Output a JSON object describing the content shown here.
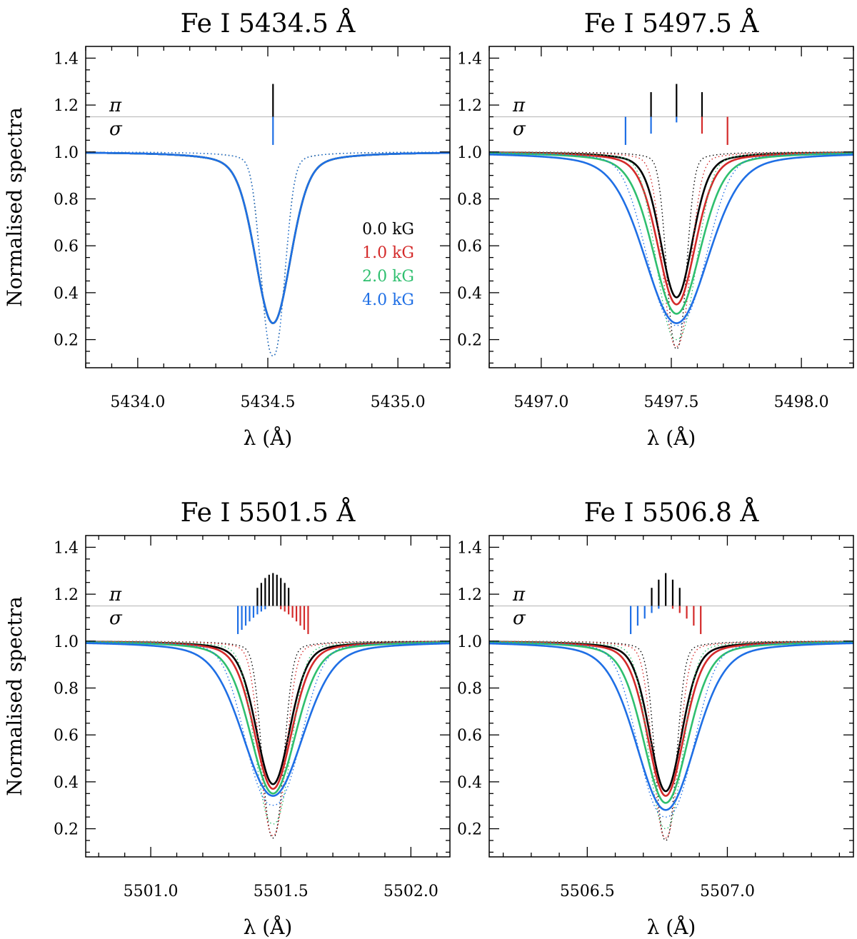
{
  "chart_data": [
    {
      "type": "line",
      "title": "Fe I  5434.5 Å",
      "xlabel": "λ (Å)",
      "ylabel": "Normalised spectra",
      "xlim": [
        5433.8,
        5435.2
      ],
      "ylim": [
        0.08,
        1.45
      ],
      "xticks": [
        5434.0,
        5434.5,
        5435.0
      ],
      "xtick_labels": [
        "5434.0",
        "5434.5",
        "5435.0"
      ],
      "yticks": [
        0.2,
        0.4,
        0.6,
        0.8,
        1.0,
        1.2,
        1.4
      ],
      "ytick_labels": [
        "0.2",
        "0.4",
        "0.6",
        "0.8",
        "1.0",
        "1.2",
        "1.4"
      ],
      "line_center": 5434.52,
      "pi_label": "π",
      "sigma_label": "σ",
      "legend": [
        "0.0 kG",
        "1.0 kG",
        "2.0 kG",
        "4.0 kG"
      ],
      "series": [
        {
          "name": "0.0 kG",
          "color": "#000000",
          "depth": 0.73,
          "width": 0.095,
          "dotted_depth": 0.87,
          "dotted_width": 0.06
        },
        {
          "name": "1.0 kG",
          "color": "#d42a2a",
          "depth": 0.73,
          "width": 0.095,
          "dotted_depth": 0.87,
          "dotted_width": 0.06
        },
        {
          "name": "2.0 kG",
          "color": "#2fbf6f",
          "depth": 0.73,
          "width": 0.095,
          "dotted_depth": 0.87,
          "dotted_width": 0.06
        },
        {
          "name": "4.0 kG",
          "color": "#1f6fe5",
          "depth": 0.73,
          "width": 0.095,
          "dotted_depth": 0.87,
          "dotted_width": 0.06
        }
      ],
      "zeeman_pi": [
        {
          "offset": 0.0,
          "strength": 1.0
        }
      ],
      "zeeman_sigma_blue": [
        {
          "offset": 0.0,
          "strength": 1.0
        }
      ],
      "zeeman_sigma_red": []
    },
    {
      "type": "line",
      "title": "Fe I  5497.5 Å",
      "xlabel": "λ (Å)",
      "ylabel": "Normalised spectra",
      "xlim": [
        5496.8,
        5498.2
      ],
      "ylim": [
        0.08,
        1.45
      ],
      "xticks": [
        5497.0,
        5497.5,
        5498.0
      ],
      "xtick_labels": [
        "5497.0",
        "5497.5",
        "5498.0"
      ],
      "yticks": [
        0.2,
        0.4,
        0.6,
        0.8,
        1.0,
        1.2,
        1.4
      ],
      "ytick_labels": [
        "0.2",
        "0.4",
        "0.6",
        "0.8",
        "1.0",
        "1.2",
        "1.4"
      ],
      "line_center": 5497.52,
      "pi_label": "π",
      "sigma_label": "σ",
      "series": [
        {
          "name": "0.0 kG",
          "color": "#000000",
          "depth": 0.62,
          "width": 0.085,
          "dotted_depth": 0.84,
          "dotted_width": 0.05
        },
        {
          "name": "1.0 kG",
          "color": "#d42a2a",
          "depth": 0.65,
          "width": 0.1,
          "dotted_depth": 0.83,
          "dotted_width": 0.07
        },
        {
          "name": "2.0 kG",
          "color": "#2fbf6f",
          "depth": 0.69,
          "width": 0.125,
          "dotted_depth": 0.8,
          "dotted_width": 0.1
        },
        {
          "name": "4.0 kG",
          "color": "#1f6fe5",
          "depth": 0.73,
          "width": 0.17,
          "dotted_depth": 0.74,
          "dotted_width": 0.15
        }
      ],
      "zeeman_pi": [
        {
          "offset": -0.098,
          "strength": 0.75
        },
        {
          "offset": 0.0,
          "strength": 1.0
        },
        {
          "offset": 0.098,
          "strength": 0.75
        }
      ],
      "zeeman_sigma_blue": [
        {
          "offset": -0.196,
          "strength": 1.0
        },
        {
          "offset": -0.098,
          "strength": 0.6
        },
        {
          "offset": 0.0,
          "strength": 0.2
        }
      ],
      "zeeman_sigma_red": [
        {
          "offset": 0.098,
          "strength": 0.6
        },
        {
          "offset": 0.196,
          "strength": 1.0
        }
      ]
    },
    {
      "type": "line",
      "title": "Fe I  5501.5 Å",
      "xlabel": "λ (Å)",
      "ylabel": "Normalised spectra",
      "xlim": [
        5500.75,
        5502.15
      ],
      "ylim": [
        0.08,
        1.45
      ],
      "xticks": [
        5501.0,
        5501.5,
        5502.0
      ],
      "xtick_labels": [
        "5501.0",
        "5501.5",
        "5502.0"
      ],
      "yticks": [
        0.2,
        0.4,
        0.6,
        0.8,
        1.0,
        1.2,
        1.4
      ],
      "ytick_labels": [
        "0.2",
        "0.4",
        "0.6",
        "0.8",
        "1.0",
        "1.2",
        "1.4"
      ],
      "line_center": 5501.47,
      "pi_label": "π",
      "sigma_label": "σ",
      "series": [
        {
          "name": "0.0 kG",
          "color": "#000000",
          "depth": 0.61,
          "width": 0.09,
          "dotted_depth": 0.84,
          "dotted_width": 0.055
        },
        {
          "name": "1.0 kG",
          "color": "#d42a2a",
          "depth": 0.63,
          "width": 0.1,
          "dotted_depth": 0.83,
          "dotted_width": 0.065
        },
        {
          "name": "2.0 kG",
          "color": "#2fbf6f",
          "depth": 0.65,
          "width": 0.12,
          "dotted_depth": 0.78,
          "dotted_width": 0.09
        },
        {
          "name": "4.0 kG",
          "color": "#1f6fe5",
          "depth": 0.66,
          "width": 0.16,
          "dotted_depth": 0.7,
          "dotted_width": 0.14
        }
      ],
      "zeeman_pi": [
        {
          "offset": -0.06,
          "strength": 0.55
        },
        {
          "offset": -0.045,
          "strength": 0.7
        },
        {
          "offset": -0.03,
          "strength": 0.85
        },
        {
          "offset": -0.015,
          "strength": 0.95
        },
        {
          "offset": 0.0,
          "strength": 1.0
        },
        {
          "offset": 0.015,
          "strength": 0.95
        },
        {
          "offset": 0.03,
          "strength": 0.85
        },
        {
          "offset": 0.045,
          "strength": 0.7
        },
        {
          "offset": 0.06,
          "strength": 0.55
        }
      ],
      "zeeman_sigma_blue": [
        {
          "offset": -0.135,
          "strength": 1.0
        },
        {
          "offset": -0.12,
          "strength": 0.85
        },
        {
          "offset": -0.105,
          "strength": 0.7
        },
        {
          "offset": -0.09,
          "strength": 0.55
        },
        {
          "offset": -0.075,
          "strength": 0.42
        },
        {
          "offset": -0.06,
          "strength": 0.3
        },
        {
          "offset": -0.045,
          "strength": 0.2
        },
        {
          "offset": -0.03,
          "strength": 0.12
        }
      ],
      "zeeman_sigma_red": [
        {
          "offset": 0.03,
          "strength": 0.12
        },
        {
          "offset": 0.045,
          "strength": 0.2
        },
        {
          "offset": 0.06,
          "strength": 0.3
        },
        {
          "offset": 0.075,
          "strength": 0.42
        },
        {
          "offset": 0.09,
          "strength": 0.55
        },
        {
          "offset": 0.105,
          "strength": 0.7
        },
        {
          "offset": 0.12,
          "strength": 0.85
        },
        {
          "offset": 0.135,
          "strength": 1.0
        }
      ]
    },
    {
      "type": "line",
      "title": "Fe I  5506.8 Å",
      "xlabel": "λ (Å)",
      "ylabel": "Normalised spectra",
      "xlim": [
        5506.15,
        5507.45
      ],
      "ylim": [
        0.08,
        1.45
      ],
      "xticks": [
        5506.5,
        5507.0
      ],
      "xtick_labels": [
        "5506.5",
        "5507.0"
      ],
      "yticks": [
        0.2,
        0.4,
        0.6,
        0.8,
        1.0,
        1.2,
        1.4
      ],
      "ytick_labels": [
        "0.2",
        "0.4",
        "0.6",
        "0.8",
        "1.0",
        "1.2",
        "1.4"
      ],
      "line_center": 5506.78,
      "pi_label": "π",
      "sigma_label": "σ",
      "series": [
        {
          "name": "0.0 kG",
          "color": "#000000",
          "depth": 0.64,
          "width": 0.08,
          "dotted_depth": 0.85,
          "dotted_width": 0.05
        },
        {
          "name": "1.0 kG",
          "color": "#d42a2a",
          "depth": 0.66,
          "width": 0.09,
          "dotted_depth": 0.84,
          "dotted_width": 0.06
        },
        {
          "name": "2.0 kG",
          "color": "#2fbf6f",
          "depth": 0.69,
          "width": 0.11,
          "dotted_depth": 0.8,
          "dotted_width": 0.08
        },
        {
          "name": "4.0 kG",
          "color": "#1f6fe5",
          "depth": 0.72,
          "width": 0.145,
          "dotted_depth": 0.75,
          "dotted_width": 0.13
        }
      ],
      "zeeman_pi": [
        {
          "offset": -0.05,
          "strength": 0.55
        },
        {
          "offset": -0.025,
          "strength": 0.8
        },
        {
          "offset": 0.0,
          "strength": 1.0
        },
        {
          "offset": 0.025,
          "strength": 0.8
        },
        {
          "offset": 0.05,
          "strength": 0.55
        }
      ],
      "zeeman_sigma_blue": [
        {
          "offset": -0.125,
          "strength": 1.0
        },
        {
          "offset": -0.1,
          "strength": 0.7
        },
        {
          "offset": -0.075,
          "strength": 0.45
        },
        {
          "offset": -0.05,
          "strength": 0.25
        },
        {
          "offset": -0.025,
          "strength": 0.1
        }
      ],
      "zeeman_sigma_red": [
        {
          "offset": 0.025,
          "strength": 0.1
        },
        {
          "offset": 0.05,
          "strength": 0.25
        },
        {
          "offset": 0.075,
          "strength": 0.45
        },
        {
          "offset": 0.1,
          "strength": 0.7
        },
        {
          "offset": 0.125,
          "strength": 1.0
        }
      ]
    }
  ],
  "colors": {
    "black": "#000000",
    "red": "#d42a2a",
    "green": "#2fbf6f",
    "blue": "#1f6fe5",
    "reference_line": "#bbbbbb"
  }
}
